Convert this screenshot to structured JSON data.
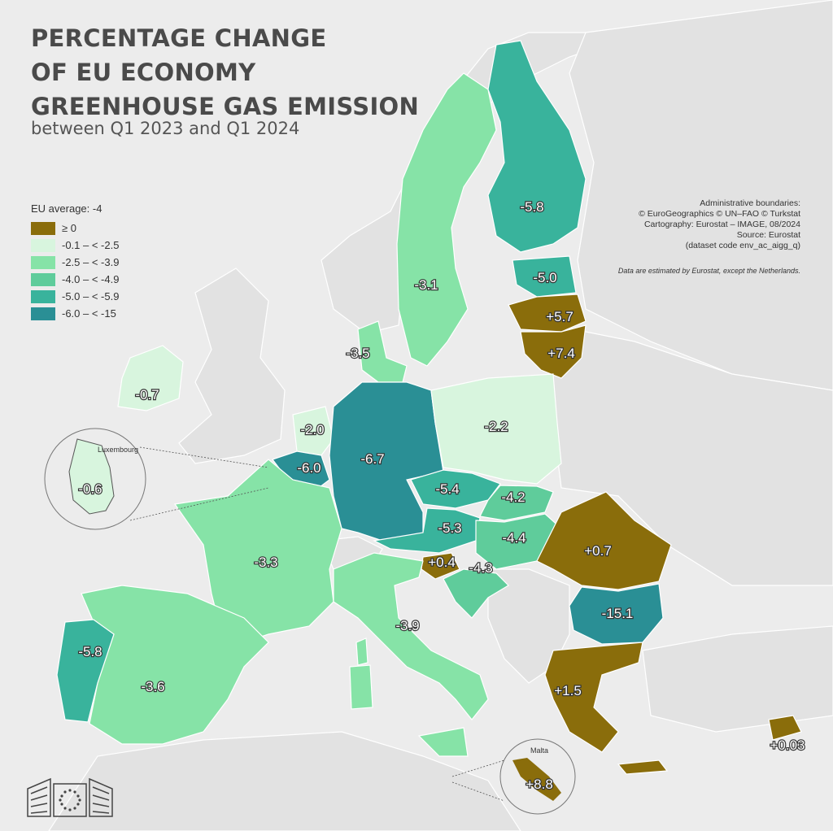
{
  "title_lines": [
    "PERCENTAGE CHANGE",
    "OF EU ECONOMY",
    "GREENHOUSE GAS EMISSION"
  ],
  "subtitle": "between Q1 2023 and Q1 2024",
  "legend": {
    "title": "EU average: -4",
    "items": [
      {
        "label": "≥ 0",
        "color": "#8a6d0b"
      },
      {
        "label": "-0.1 – < -2.5",
        "color": "#d8f5de"
      },
      {
        "label": "-2.5 – < -3.9",
        "color": "#86e3a7"
      },
      {
        "label": "-4.0 – < -4.9",
        "color": "#5fcc9b"
      },
      {
        "label": "-5.0 – < -5.9",
        "color": "#39b39c"
      },
      {
        "label": "-6.0 – < -15",
        "color": "#2a8f95"
      }
    ]
  },
  "credits": [
    "Administrative boundaries:",
    "© EuroGeographics © UN–FAO © Turkstat",
    "Cartography: Eurostat – IMAGE, 08/2024",
    "Source: Eurostat",
    "(dataset code env_ac_aigg_q)"
  ],
  "note": "Data are estimated by Eurostat, except the Netherlands.",
  "insets": {
    "luxembourg": "Luxembourg",
    "malta": "Malta"
  },
  "values": {
    "finland": "-5.8",
    "sweden": "-3.1",
    "estonia": "-5.0",
    "latvia": "+5.7",
    "lithuania": "+7.4",
    "denmark": "-3.5",
    "ireland": "-0.7",
    "netherlands": "-2.0",
    "belgium": "-6.0",
    "luxembourg": "-0.6",
    "germany": "-6.7",
    "poland": "-2.2",
    "czechia": "-5.4",
    "slovakia": "-4.2",
    "austria": "-5.3",
    "hungary": "-4.4",
    "slovenia": "+0.4",
    "croatia": "-4.3",
    "romania": "+0.7",
    "bulgaria": "-15.1",
    "france": "-3.3",
    "italy": "-3.9",
    "spain": "-3.6",
    "portugal": "-5.8",
    "greece": "+1.5",
    "cyprus": "+0.03",
    "malta": "+8.8"
  },
  "colors": {
    "positive": "#8a6d0b",
    "light": "#d8f5de",
    "mid": "#86e3a7",
    "med": "#5fcc9b",
    "dark": "#39b39c",
    "darkest": "#2a8f95",
    "non_eu": "#e2e2e2",
    "sea": "#ececec"
  }
}
